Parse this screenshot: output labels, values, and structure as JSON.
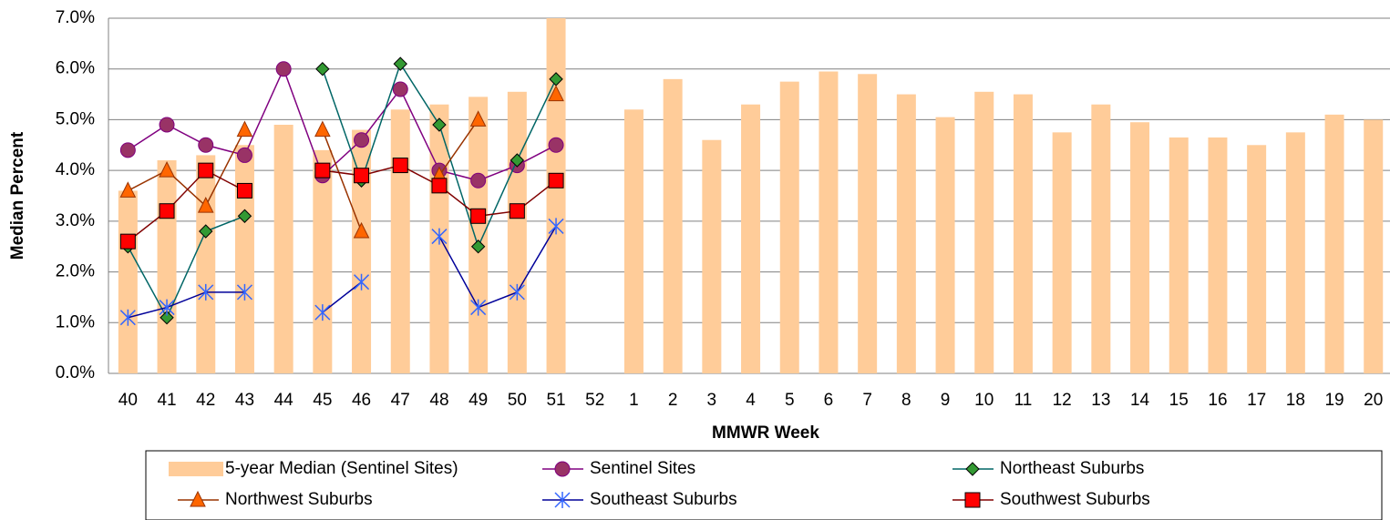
{
  "chart_data": {
    "type": "bar_line",
    "x_label": "MMWR Week",
    "y_label": "Median Percent",
    "categories": [
      "40",
      "41",
      "42",
      "43",
      "44",
      "45",
      "46",
      "47",
      "48",
      "49",
      "50",
      "51",
      "52",
      "1",
      "2",
      "3",
      "4",
      "5",
      "6",
      "7",
      "8",
      "9",
      "10",
      "11",
      "12",
      "13",
      "14",
      "15",
      "16",
      "17",
      "18",
      "19",
      "20"
    ],
    "ylim": [
      0,
      7
    ],
    "yticks": [
      {
        "value": 0,
        "label": "0.0%"
      },
      {
        "value": 1,
        "label": "1.0%"
      },
      {
        "value": 2,
        "label": "2.0%"
      },
      {
        "value": 3,
        "label": "3.0%"
      },
      {
        "value": 4,
        "label": "4.0%"
      },
      {
        "value": 5,
        "label": "5.0%"
      },
      {
        "value": 6,
        "label": "6.0%"
      },
      {
        "value": 7,
        "label": "7.0%"
      }
    ],
    "grid": true,
    "series": [
      {
        "name": "5-year Median (Sentinel Sites)",
        "kind": "bar",
        "color": "#FFCC99",
        "values": [
          3.6,
          4.2,
          4.3,
          4.5,
          4.9,
          4.4,
          4.8,
          5.2,
          5.3,
          5.45,
          5.55,
          7.0,
          null,
          5.2,
          5.8,
          4.6,
          5.3,
          5.75,
          5.95,
          5.9,
          5.5,
          5.05,
          5.55,
          5.5,
          4.75,
          5.3,
          4.95,
          4.65,
          4.65,
          4.5,
          4.75,
          5.1,
          5.0
        ]
      },
      {
        "name": "Sentinel Sites",
        "kind": "line",
        "color": "#800080",
        "marker": "circle",
        "marker_color": "#993366",
        "values": [
          4.4,
          4.9,
          4.5,
          4.3,
          6.0,
          3.9,
          4.6,
          5.6,
          4.0,
          3.8,
          4.1,
          4.5,
          null,
          null,
          null,
          null,
          null,
          null,
          null,
          null,
          null,
          null,
          null,
          null,
          null,
          null,
          null,
          null,
          null,
          null,
          null,
          null,
          null
        ]
      },
      {
        "name": "Northeast Suburbs",
        "kind": "line",
        "color": "#006666",
        "marker": "diamond",
        "marker_color": "#339933",
        "values": [
          2.5,
          1.1,
          2.8,
          3.1,
          null,
          6.0,
          3.8,
          6.1,
          4.9,
          2.5,
          4.2,
          5.8,
          null,
          null,
          null,
          null,
          null,
          null,
          null,
          null,
          null,
          null,
          null,
          null,
          null,
          null,
          null,
          null,
          null,
          null,
          null,
          null,
          null
        ]
      },
      {
        "name": "Northwest Suburbs",
        "kind": "line",
        "color": "#993300",
        "marker": "triangle",
        "marker_color": "#FF6600",
        "values": [
          3.6,
          4.0,
          3.3,
          4.8,
          null,
          4.8,
          2.8,
          null,
          3.9,
          5.0,
          null,
          5.5,
          null,
          null,
          null,
          null,
          null,
          null,
          null,
          null,
          null,
          null,
          null,
          null,
          null,
          null,
          null,
          null,
          null,
          null,
          null,
          null,
          null
        ]
      },
      {
        "name": "Southeast Suburbs",
        "kind": "line",
        "color": "#000099",
        "marker": "star",
        "marker_color": "#3366FF",
        "values": [
          1.1,
          1.3,
          1.6,
          1.6,
          null,
          1.2,
          1.8,
          null,
          2.7,
          1.3,
          1.6,
          2.9,
          null,
          null,
          null,
          null,
          null,
          null,
          null,
          null,
          null,
          null,
          null,
          null,
          null,
          null,
          null,
          null,
          null,
          null,
          null,
          null,
          null
        ]
      },
      {
        "name": "Southwest Suburbs",
        "kind": "line",
        "color": "#800000",
        "marker": "square",
        "marker_color": "#FF0000",
        "values": [
          2.6,
          3.2,
          4.0,
          3.6,
          null,
          4.0,
          3.9,
          4.1,
          3.7,
          3.1,
          3.2,
          3.8,
          null,
          null,
          null,
          null,
          null,
          null,
          null,
          null,
          null,
          null,
          null,
          null,
          null,
          null,
          null,
          null,
          null,
          null,
          null,
          null,
          null
        ]
      }
    ]
  }
}
